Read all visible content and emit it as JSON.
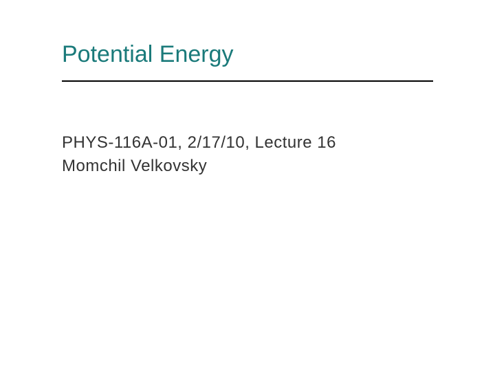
{
  "slide": {
    "title": "Potential Energy",
    "subtitle_line1": "PHYS-116A-01, 2/17/10, Lecture 16",
    "subtitle_line2": "Momchil Velkovsky",
    "title_color": "#1a7a7a",
    "text_color": "#333333",
    "divider_color": "#000000",
    "background_color": "#ffffff",
    "title_fontsize": 34,
    "subtitle_fontsize": 24
  }
}
